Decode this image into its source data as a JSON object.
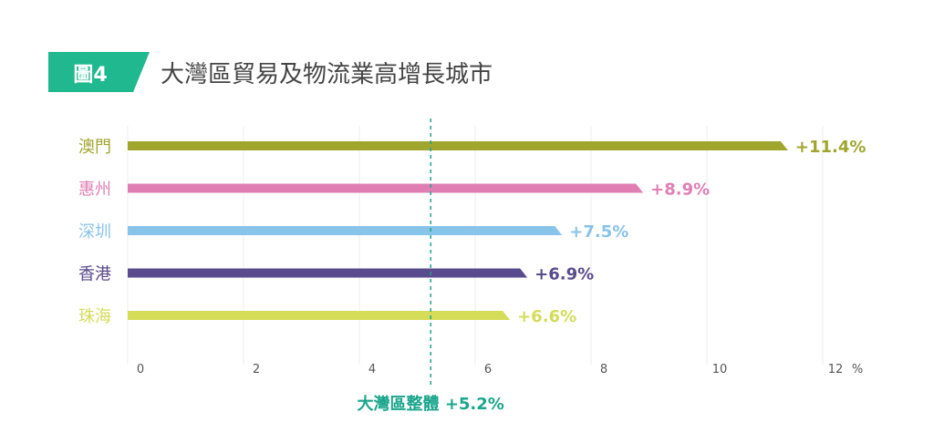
{
  "header": {
    "badge": "圖4",
    "title": "大灣區貿易及物流業高增長城市"
  },
  "chart_data": {
    "type": "bar",
    "orientation": "horizontal",
    "categories": [
      "澳門",
      "惠州",
      "深圳",
      "香港",
      "珠海"
    ],
    "values": [
      11.4,
      8.9,
      7.5,
      6.9,
      6.6
    ],
    "value_labels": [
      "+11.4%",
      "+8.9%",
      "+7.5%",
      "+6.9%",
      "+6.6%"
    ],
    "colors": [
      "#a0a52e",
      "#e07eb4",
      "#88c3ea",
      "#5a4a8e",
      "#d4dc58"
    ],
    "xlim": [
      0,
      12
    ],
    "xticks": [
      "0",
      "2",
      "4",
      "6",
      "8",
      "10",
      "12"
    ],
    "x_unit": "%",
    "grid": "vertical",
    "reference_line": {
      "value": 5.2,
      "label": "大灣區整體 +5.2%",
      "color": "#1aa58c"
    }
  },
  "colors": {
    "badge": "#1fb88f",
    "title": "#444444",
    "tick": "#555555",
    "grid": "#eeeeee"
  }
}
